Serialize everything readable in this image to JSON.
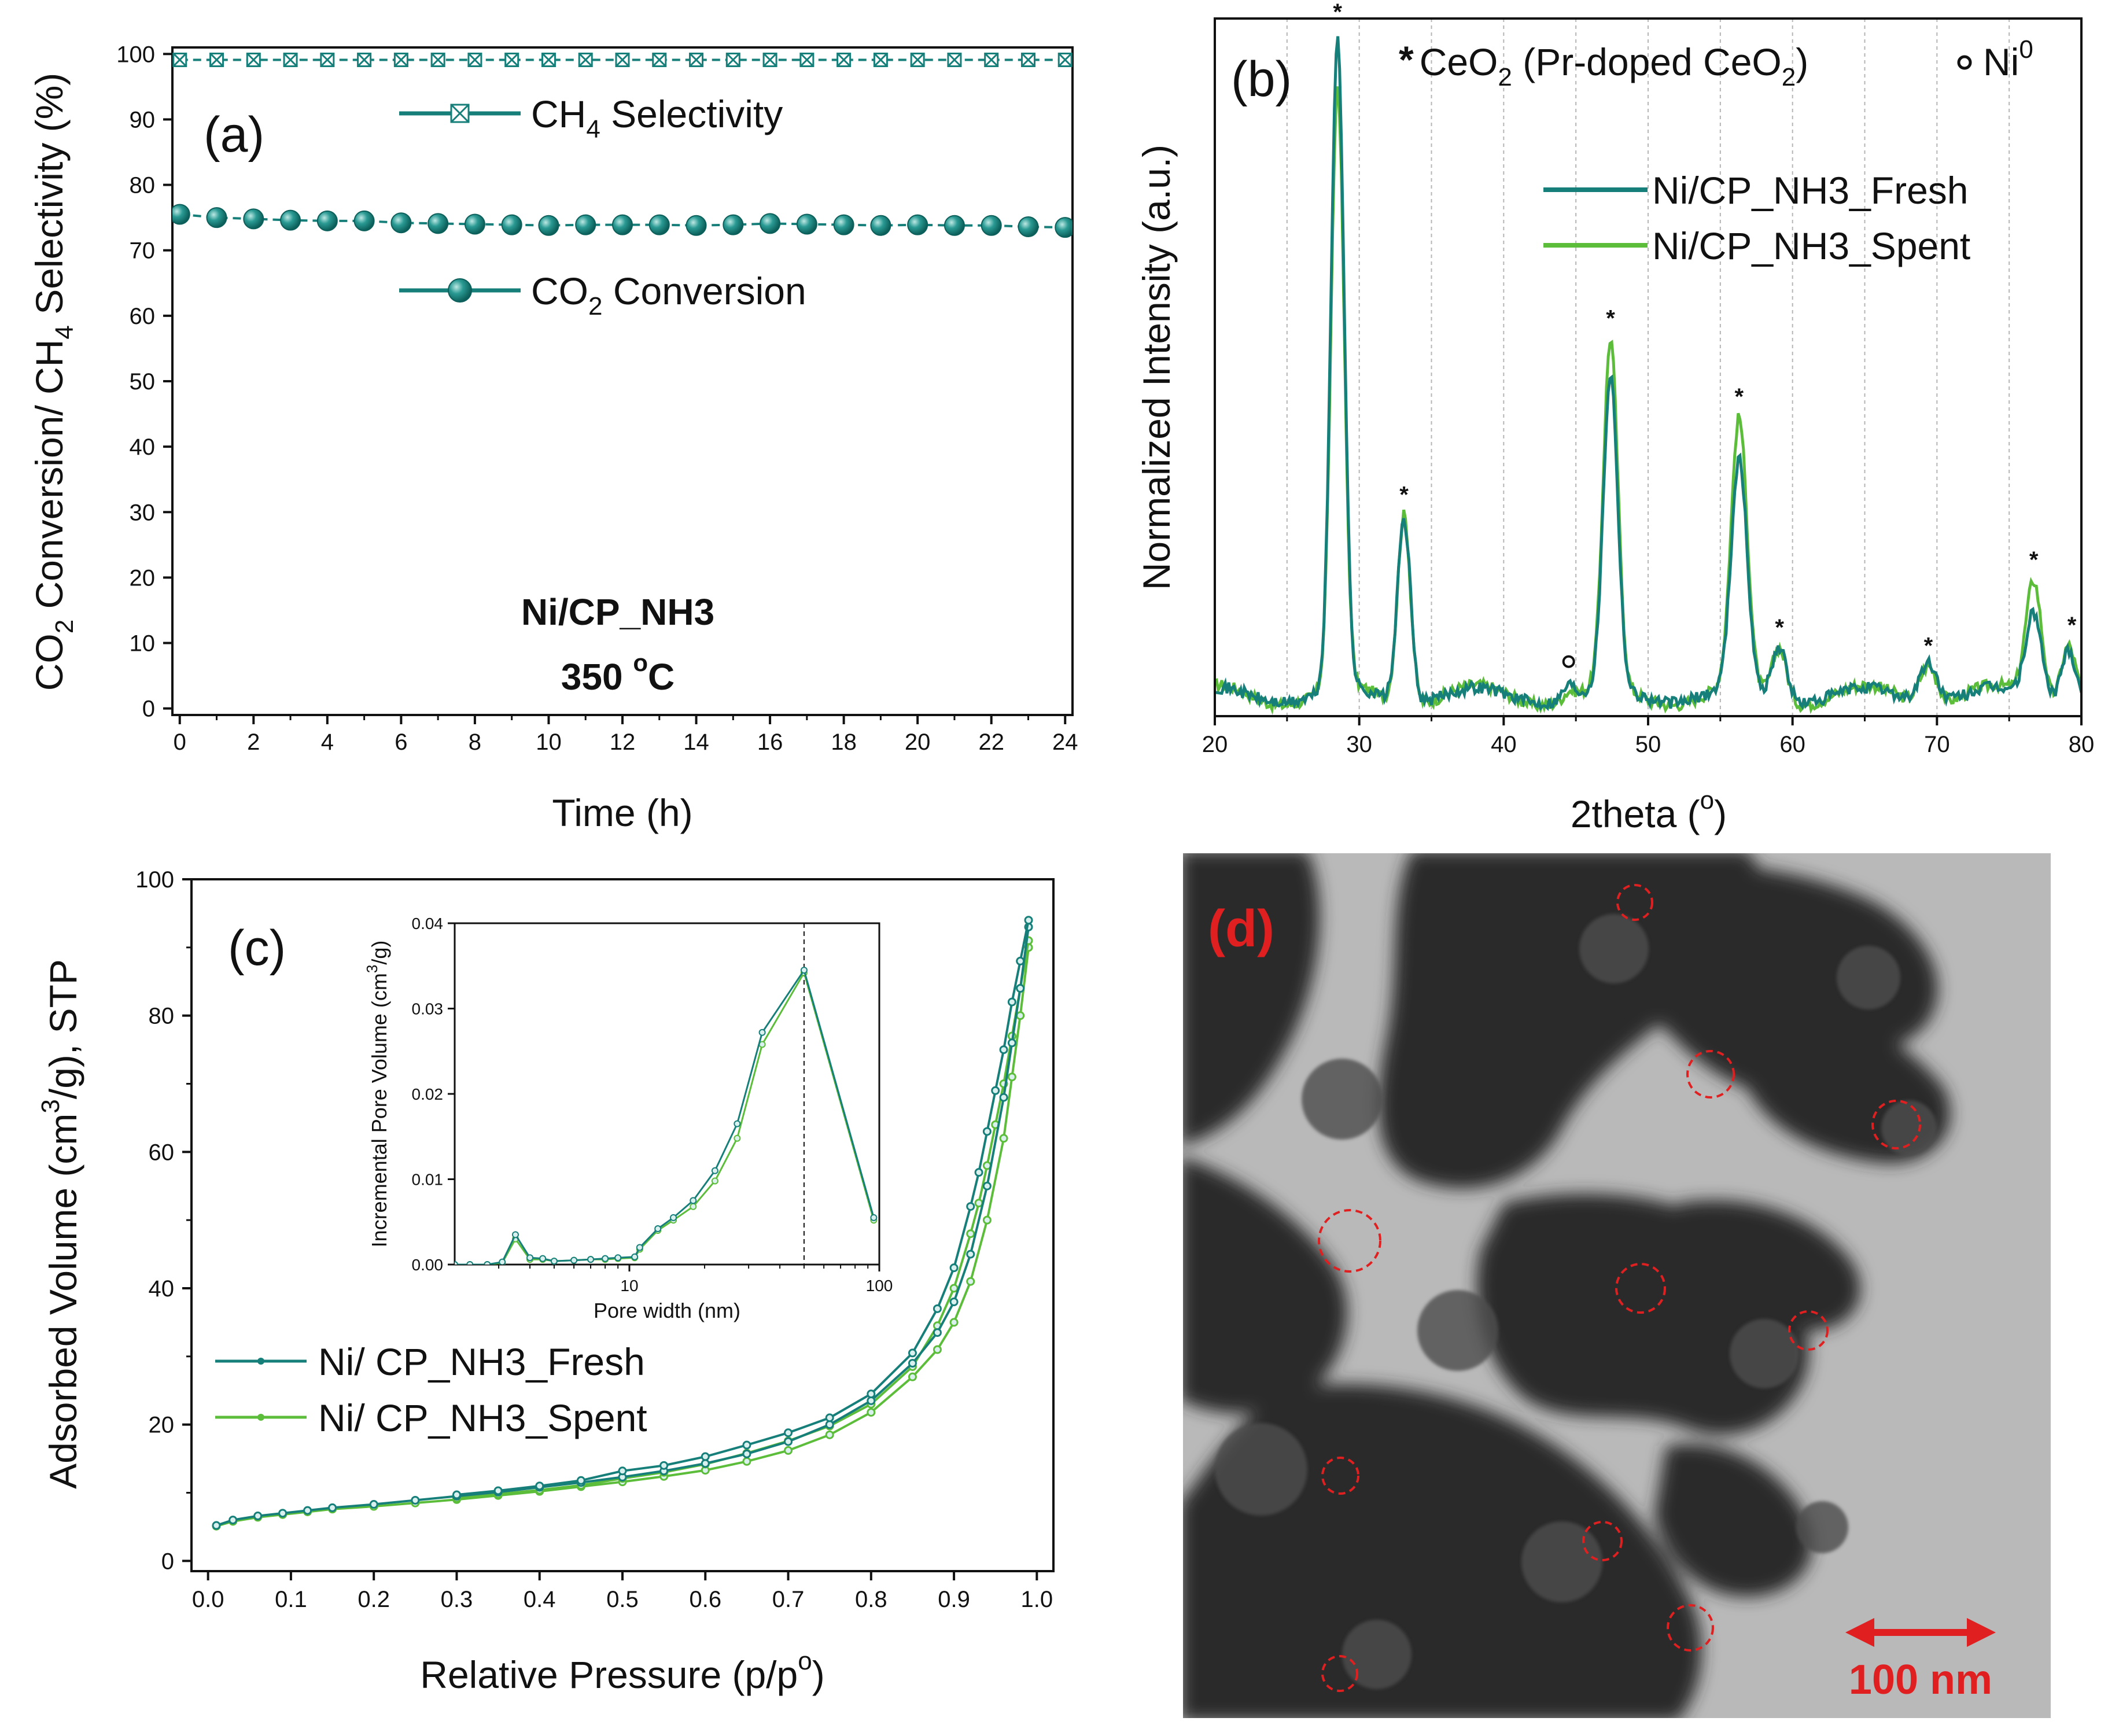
{
  "colors": {
    "fresh": "#167f7a",
    "spent": "#5cbd3a",
    "axis": "#111111",
    "grid": "#b5b5b5",
    "scale": "#e02020"
  },
  "chart_data": [
    {
      "panel": "(a)",
      "type": "line",
      "title": "",
      "xlabel": "Time (h)",
      "ylabel": "CO2 Conversion/ CH4 Selectivity (%)",
      "ylabel_parts": {
        "a": "CO",
        "b": "2",
        "c": " Conversion/ CH",
        "d": "4",
        "e": " Selectivity (%)"
      },
      "xlim": [
        0,
        24
      ],
      "ylim": [
        0,
        100
      ],
      "xticks": [
        0,
        2,
        4,
        6,
        8,
        10,
        12,
        14,
        16,
        18,
        20,
        22,
        24
      ],
      "yticks": [
        0,
        10,
        20,
        30,
        40,
        50,
        60,
        70,
        80,
        90,
        100
      ],
      "annotation": [
        "Ni/CP_NH3",
        "350 °C"
      ],
      "annotation_parts": {
        "temp": "350 ",
        "deg": "o",
        "unit": "C"
      },
      "legend": [
        {
          "name": "CH4 Selectivity",
          "parts": [
            "CH",
            "4",
            " Selectivity"
          ],
          "marker": "crossed-square"
        },
        {
          "name": "CO2 Conversion",
          "parts": [
            "CO",
            "2",
            " Conversion"
          ],
          "marker": "sphere"
        }
      ],
      "series": [
        {
          "name": "CH4 Selectivity",
          "x": [
            0,
            1,
            2,
            3,
            4,
            5,
            6,
            7,
            8,
            9,
            10,
            11,
            12,
            13,
            14,
            15,
            16,
            17,
            18,
            19,
            20,
            21,
            22,
            23,
            24
          ],
          "values": [
            99.1,
            99.1,
            99.1,
            99.1,
            99.1,
            99.1,
            99.1,
            99.1,
            99.1,
            99.1,
            99.1,
            99.1,
            99.1,
            99.1,
            99.1,
            99.1,
            99.1,
            99.1,
            99.1,
            99.1,
            99.1,
            99.1,
            99.1,
            99.1,
            99.1
          ]
        },
        {
          "name": "CO2 Conversion",
          "x": [
            0,
            1,
            2,
            3,
            4,
            5,
            6,
            7,
            8,
            9,
            10,
            11,
            12,
            13,
            14,
            15,
            16,
            17,
            18,
            19,
            20,
            21,
            22,
            23,
            24
          ],
          "values": [
            75.5,
            75.0,
            74.8,
            74.6,
            74.5,
            74.5,
            74.2,
            74.1,
            74.0,
            73.9,
            73.8,
            73.9,
            73.9,
            73.9,
            73.8,
            73.9,
            74.1,
            74.0,
            73.9,
            73.8,
            73.9,
            73.8,
            73.8,
            73.6,
            73.5
          ]
        }
      ]
    },
    {
      "panel": "(b)",
      "type": "line",
      "xlabel": "2theta (°)",
      "xlabel_parts": [
        "2theta (",
        "o",
        ")"
      ],
      "ylabel": "Normalized Intensity (a.u.)",
      "xlim": [
        20,
        80
      ],
      "xticks": [
        20,
        30,
        40,
        50,
        60,
        70,
        80
      ],
      "grid": true,
      "legend_top": {
        "star_text": "CeO2 (Pr-doped CeO2)",
        "star_parts": [
          "CeO",
          "2",
          " (Pr-doped CeO",
          "2",
          ")"
        ],
        "ni_text": "Ni0",
        "ni_parts": [
          "Ni",
          "0"
        ]
      },
      "legend": [
        "Ni/CP_NH3_Fresh",
        "Ni/CP_NH3_Spent"
      ],
      "star_markers": [
        28.5,
        33.1,
        47.4,
        56.3,
        59.1,
        69.4,
        76.7,
        79.1
      ],
      "circle_markers": [
        44.5
      ],
      "peaks": [
        {
          "center": 28.5,
          "fresh": 1.0,
          "spent": 0.92,
          "width": 0.45
        },
        {
          "center": 33.1,
          "fresh": 0.28,
          "spent": 0.29,
          "width": 0.45
        },
        {
          "center": 44.5,
          "fresh": 0.02,
          "spent": 0.01,
          "width": 0.4
        },
        {
          "center": 47.4,
          "fresh": 0.48,
          "spent": 0.53,
          "width": 0.5
        },
        {
          "center": 56.3,
          "fresh": 0.35,
          "spent": 0.41,
          "width": 0.55
        },
        {
          "center": 59.1,
          "fresh": 0.08,
          "spent": 0.08,
          "width": 0.5
        },
        {
          "center": 69.4,
          "fresh": 0.06,
          "spent": 0.06,
          "width": 0.6
        },
        {
          "center": 76.7,
          "fresh": 0.13,
          "spent": 0.18,
          "width": 0.55
        },
        {
          "center": 79.1,
          "fresh": 0.08,
          "spent": 0.09,
          "width": 0.5
        }
      ]
    },
    {
      "panel": "(c)",
      "type": "line",
      "xlabel": "Relative Pressure (p/p°)",
      "xlabel_parts": [
        "Relative Pressure (p/p",
        "o",
        ")"
      ],
      "ylabel": "Adsorbed Volume (cm3/g), STP",
      "ylabel_parts": [
        "Adsorbed Volume (cm",
        "3",
        "/g), STP"
      ],
      "xlim": [
        0.0,
        1.0
      ],
      "ylim": [
        0,
        100
      ],
      "xticks": [
        "0.0",
        "0.1",
        "0.2",
        "0.3",
        "0.4",
        "0.5",
        "0.6",
        "0.7",
        "0.8",
        "0.9",
        "1.0"
      ],
      "yticks": [
        0,
        20,
        40,
        60,
        80,
        100
      ],
      "legend": [
        "Ni/ CP_NH3_Fresh",
        "Ni/ CP_NH3_Spent"
      ],
      "series": [
        {
          "name": "Ni/ CP_NH3_Fresh",
          "branch": "adsorption",
          "x": [
            0.01,
            0.03,
            0.06,
            0.09,
            0.12,
            0.15,
            0.2,
            0.25,
            0.3,
            0.35,
            0.4,
            0.45,
            0.5,
            0.55,
            0.6,
            0.65,
            0.7,
            0.75,
            0.8,
            0.85,
            0.88,
            0.9,
            0.92,
            0.94,
            0.96,
            0.97,
            0.98,
            0.99
          ],
          "values": [
            5.2,
            6.0,
            6.6,
            7.0,
            7.4,
            7.8,
            8.3,
            8.9,
            9.5,
            10.1,
            10.8,
            11.5,
            12.3,
            13.2,
            14.3,
            15.7,
            17.5,
            20.0,
            23.5,
            29.0,
            33.5,
            38.0,
            45.0,
            55.0,
            68.0,
            76.0,
            84.0,
            93.0
          ]
        },
        {
          "name": "Ni/ CP_NH3_Fresh",
          "branch": "desorption",
          "x": [
            0.99,
            0.98,
            0.97,
            0.96,
            0.95,
            0.94,
            0.93,
            0.92,
            0.9,
            0.88,
            0.85,
            0.8,
            0.75,
            0.7,
            0.65,
            0.6,
            0.55,
            0.5,
            0.45,
            0.4,
            0.35,
            0.3
          ],
          "values": [
            94.0,
            88.0,
            82.0,
            75.0,
            69.0,
            63.0,
            57.0,
            52.0,
            43.0,
            37.0,
            30.5,
            24.5,
            21.0,
            18.8,
            17.0,
            15.3,
            14.0,
            13.2,
            11.8,
            11.0,
            10.3,
            9.7
          ]
        },
        {
          "name": "Ni/ CP_NH3_Spent",
          "branch": "adsorption",
          "x": [
            0.01,
            0.03,
            0.06,
            0.09,
            0.12,
            0.15,
            0.2,
            0.25,
            0.3,
            0.35,
            0.4,
            0.45,
            0.5,
            0.55,
            0.6,
            0.65,
            0.7,
            0.75,
            0.8,
            0.85,
            0.88,
            0.9,
            0.92,
            0.94,
            0.96,
            0.97,
            0.98,
            0.99
          ],
          "values": [
            5.1,
            5.8,
            6.4,
            6.8,
            7.2,
            7.6,
            8.0,
            8.5,
            9.0,
            9.6,
            10.2,
            10.9,
            11.6,
            12.4,
            13.3,
            14.6,
            16.2,
            18.5,
            21.8,
            27.0,
            31.0,
            35.0,
            41.0,
            50.0,
            62.0,
            71.0,
            80.0,
            90.0
          ]
        },
        {
          "name": "Ni/ CP_NH3_Spent",
          "branch": "desorption",
          "x": [
            0.99,
            0.98,
            0.97,
            0.96,
            0.95,
            0.94,
            0.93,
            0.92,
            0.9,
            0.88,
            0.85,
            0.8,
            0.75,
            0.7,
            0.65,
            0.6,
            0.55,
            0.5,
            0.45,
            0.4,
            0.35,
            0.3
          ],
          "values": [
            91.0,
            84.0,
            77.0,
            70.0,
            64.0,
            58.0,
            52.5,
            48.0,
            40.0,
            34.5,
            28.5,
            23.0,
            19.8,
            17.6,
            15.8,
            14.2,
            13.0,
            12.1,
            11.1,
            10.4,
            9.8,
            9.2
          ]
        }
      ],
      "inset": {
        "type": "line",
        "xscale": "log",
        "xlabel": "Pore width (nm)",
        "ylabel": "Incremental Pore Volume (cm3/g)",
        "ylabel_parts": [
          "Incremental Pore Volume (cm",
          "3",
          "/g)"
        ],
        "xlim": [
          2,
          100
        ],
        "ylim": [
          0,
          0.04
        ],
        "xticks": [
          "10",
          "100"
        ],
        "yticks": [
          "0.00",
          "0.01",
          "0.02",
          "0.03",
          "0.04"
        ],
        "vline_x": 50,
        "series": [
          {
            "name": "Fresh",
            "x": [
              2.0,
              2.3,
              2.7,
              3.1,
              3.5,
              4.0,
              4.5,
              5.0,
              6.0,
              7.0,
              8.0,
              9.0,
              10.5,
              11.0,
              13.0,
              15.0,
              18.0,
              22.0,
              27.0,
              34.0,
              50.0,
              95.0
            ],
            "values": [
              0.0,
              0.0,
              0.0,
              0.0003,
              0.0035,
              0.0008,
              0.0007,
              0.0004,
              0.0005,
              0.0006,
              0.0007,
              0.0008,
              0.0009,
              0.002,
              0.0042,
              0.0055,
              0.0075,
              0.011,
              0.0165,
              0.0272,
              0.0345,
              0.0055
            ]
          },
          {
            "name": "Spent",
            "x": [
              2.0,
              2.3,
              2.7,
              3.1,
              3.5,
              4.0,
              4.5,
              5.0,
              6.0,
              7.0,
              8.0,
              9.0,
              10.5,
              11.0,
              13.0,
              15.0,
              18.0,
              22.0,
              27.0,
              34.0,
              50.0,
              95.0
            ],
            "values": [
              0.0,
              0.0,
              0.0,
              0.0002,
              0.003,
              0.0006,
              0.0006,
              0.0004,
              0.0005,
              0.0006,
              0.0006,
              0.0007,
              0.0008,
              0.0018,
              0.004,
              0.0052,
              0.0068,
              0.0098,
              0.0148,
              0.0258,
              0.0342,
              0.0052
            ]
          }
        ]
      }
    },
    {
      "panel": "(d)",
      "type": "image",
      "letter": "(d)",
      "scale_bar": "100 nm"
    }
  ]
}
